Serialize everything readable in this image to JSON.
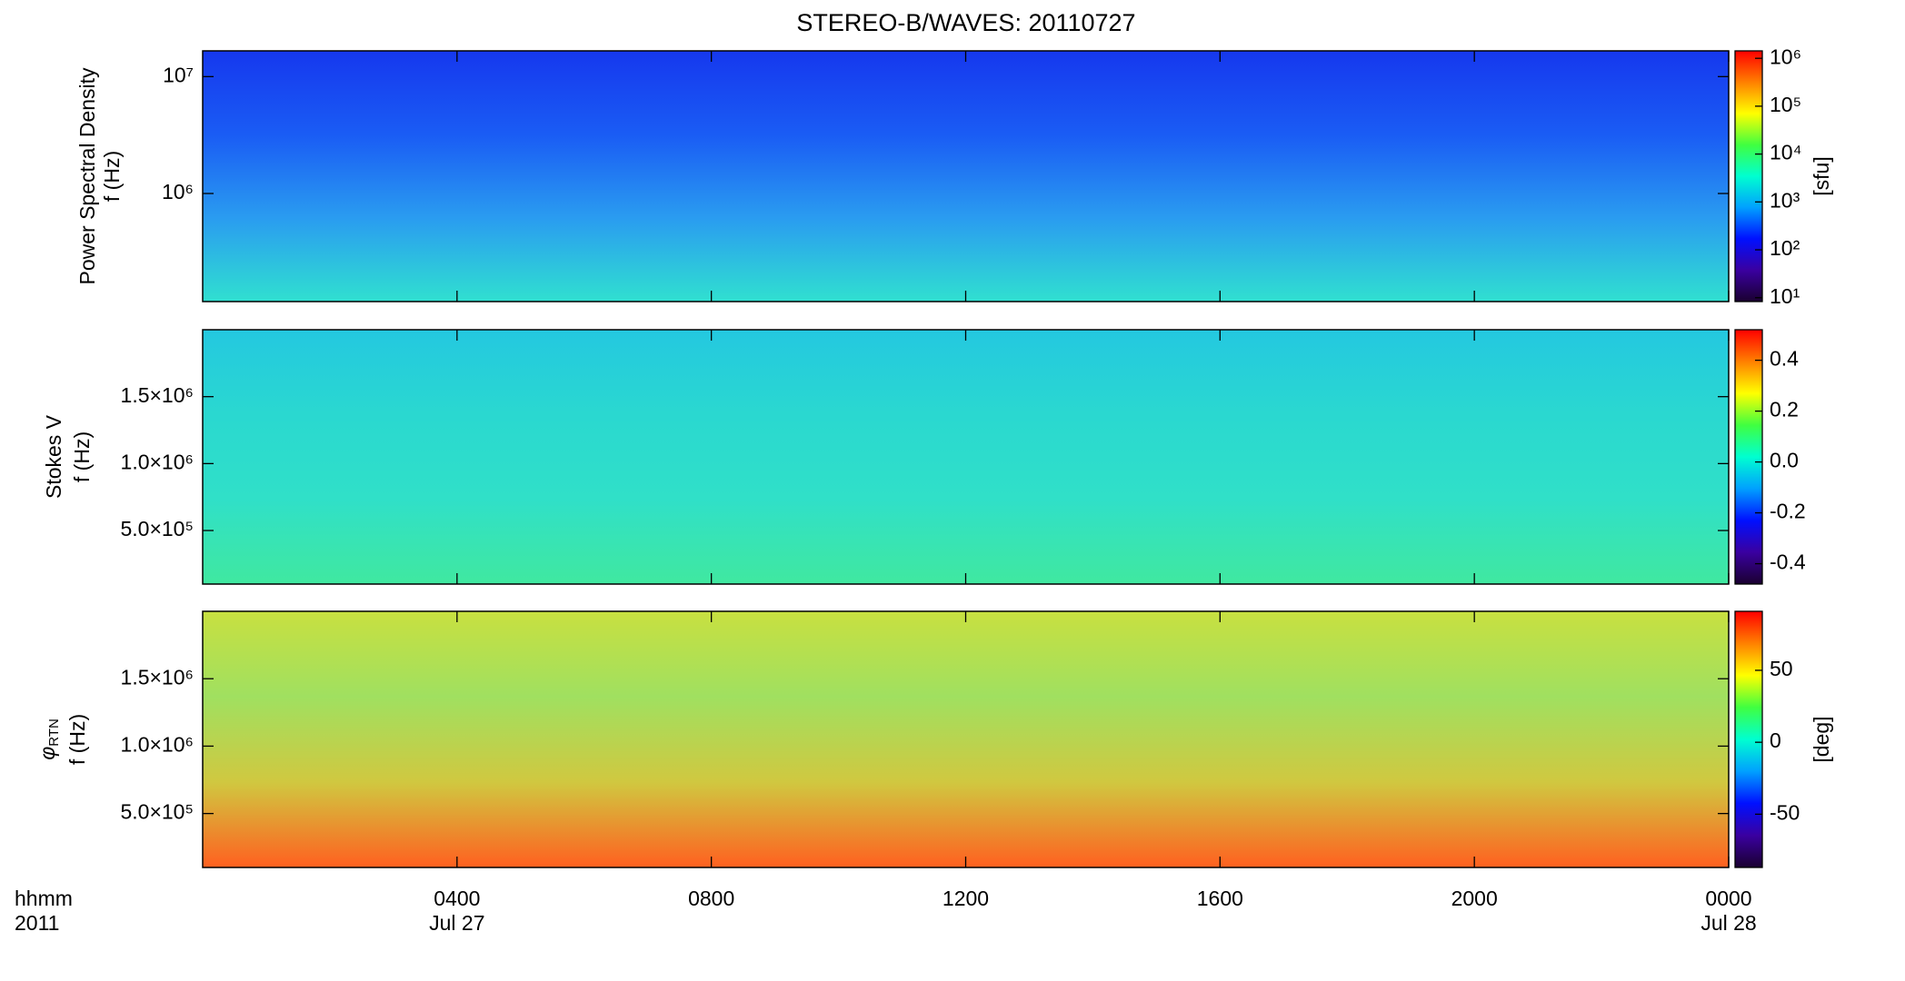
{
  "chart_data": [
    {
      "type": "spectrogram",
      "title": "STEREO-B/WAVES: 20110727",
      "ylabel": [
        "Power Spectral Density",
        "f (Hz)"
      ],
      "ylog": true,
      "ylim": [
        119000,
        16600000
      ],
      "yticks": [
        {
          "value": 1000000,
          "label": "10⁶"
        },
        {
          "value": 10000000,
          "label": "10⁷"
        }
      ],
      "zlog": true,
      "zlim": [
        8.3,
        1430000
      ],
      "zlabel": "[sfu]",
      "zticks": [
        {
          "value": 10,
          "label": "10¹"
        },
        {
          "value": 100,
          "label": "10²"
        },
        {
          "value": 1000,
          "label": "10³"
        },
        {
          "value": 10000,
          "label": "10⁴"
        },
        {
          "value": 100000,
          "label": "10⁵"
        },
        {
          "value": 1000000,
          "label": "10⁶"
        }
      ],
      "colormap": [
        "#1a0030",
        "#3a00a0",
        "#0010ff",
        "#00a0ff",
        "#00ffd0",
        "#40ff40",
        "#ffff00",
        "#ff8000",
        "#ff0000"
      ],
      "fill": [
        "#1638ee",
        "#1a5cf4",
        "#2a9cf0",
        "#30e0d0"
      ]
    },
    {
      "type": "spectrogram",
      "ylabel": [
        "Stokes V",
        "f (Hz)"
      ],
      "ylog": false,
      "ylim": [
        100000,
        2000000
      ],
      "yticks": [
        {
          "value": 500000,
          "label": "5.0×10⁵"
        },
        {
          "value": 1000000,
          "label": "1.0×10⁶"
        },
        {
          "value": 1500000,
          "label": "1.5×10⁶"
        }
      ],
      "zlog": false,
      "zlim": [
        -0.48,
        0.52
      ],
      "zticks": [
        -0.4,
        -0.2,
        {
          "value": 0,
          "label": "0.0"
        },
        0.2,
        0.4
      ],
      "colormap": [
        "#1a0030",
        "#3a00a0",
        "#0010ff",
        "#00a0ff",
        "#00ffd0",
        "#40ff40",
        "#ffff00",
        "#ff8000",
        "#ff0000"
      ],
      "fill": [
        "#24c8e0",
        "#2ad8d0",
        "#30e0c8",
        "#40e8a0"
      ]
    },
    {
      "type": "spectrogram",
      "ylabel_symbol": "φ",
      "ylabel_subscript": "RTN",
      "ylabel": [
        "f (Hz)"
      ],
      "ylog": false,
      "ylim": [
        100000,
        2000000
      ],
      "yticks": [
        {
          "value": 500000,
          "label": "5.0×10⁵"
        },
        {
          "value": 1000000,
          "label": "1.0×10⁶"
        },
        {
          "value": 1500000,
          "label": "1.5×10⁶"
        }
      ],
      "zlog": false,
      "zlim": [
        -87,
        91
      ],
      "zlabel": "[deg]",
      "zticks": [
        -50,
        0,
        50
      ],
      "colormap": [
        "#1a0030",
        "#3a00a0",
        "#0010ff",
        "#00a0ff",
        "#00ffd0",
        "#40ff40",
        "#ffff00",
        "#ff8000",
        "#ff0000"
      ],
      "fill": [
        "#c8e040",
        "#a0e060",
        "#d0c840",
        "#ff6020"
      ],
      "xlim": [
        0,
        24
      ],
      "xticks": [
        {
          "value": 4,
          "label": "0400"
        },
        {
          "value": 8,
          "label": "0800"
        },
        {
          "value": 12,
          "label": "1200"
        },
        {
          "value": 16,
          "label": "1600"
        },
        {
          "value": 20,
          "label": "2000"
        },
        {
          "value": 24,
          "label": "0000"
        }
      ],
      "xdates": [
        {
          "value": 4,
          "label": "Jul 27"
        },
        {
          "value": 24,
          "label": "Jul 28"
        }
      ],
      "xlabel": [
        "hhmm",
        "2011"
      ]
    }
  ]
}
